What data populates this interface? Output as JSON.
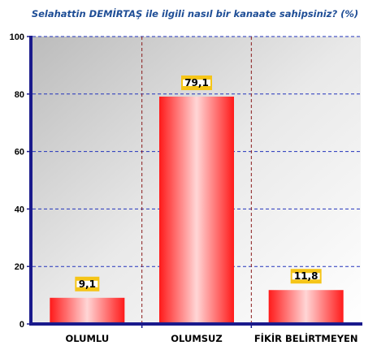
{
  "chart_data": {
    "type": "bar",
    "title": "Selahattin DEMİRTAŞ ile ilgili nasıl bir kanaate sahipsiniz? (%)",
    "categories": [
      "OLUMLU",
      "OLUMSUZ",
      "FİKİR BELİRTMEYEN"
    ],
    "values": [
      9.1,
      79.1,
      11.8
    ],
    "data_labels": [
      "9,1",
      "79,1",
      "11,8"
    ],
    "ylim": [
      0,
      100
    ],
    "yticks": [
      "0",
      "20",
      "40",
      "60",
      "80",
      "100"
    ],
    "xlabel": "",
    "ylabel": "",
    "grid": true,
    "legend": "none",
    "colors": {
      "bar_main": "#ff1a1a",
      "bar_light": "#ffd6d6",
      "axis": "#1a1a8c",
      "grid_h": "#2233bb",
      "grid_v": "#8b1a1a",
      "label_badge": "#f5c518",
      "title": "#1f4e96"
    }
  }
}
